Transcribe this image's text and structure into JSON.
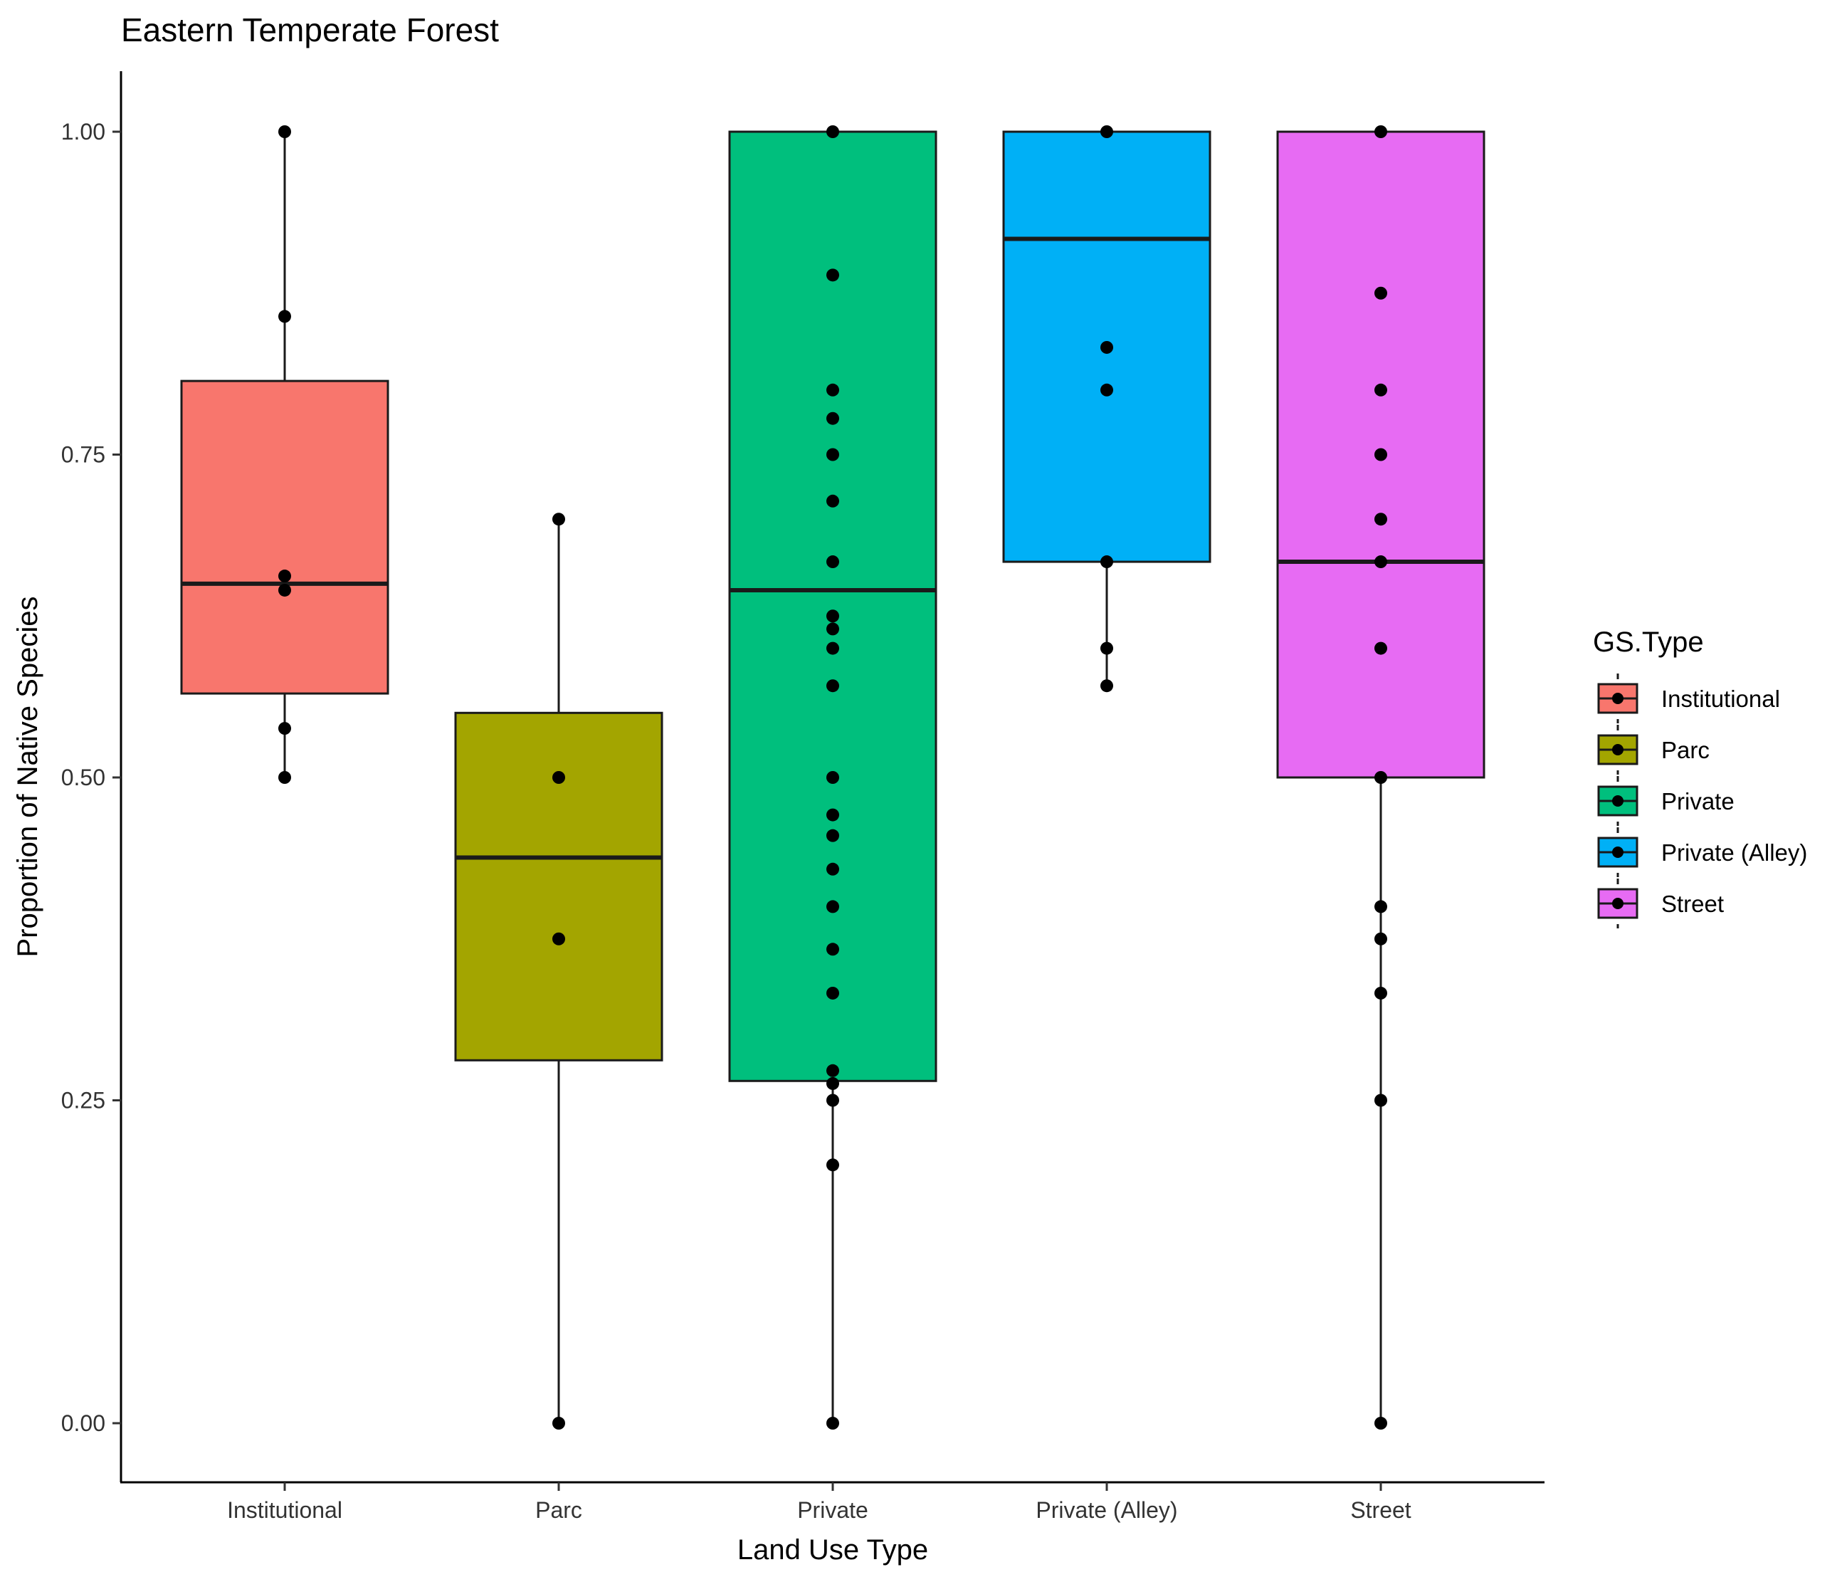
{
  "chart_data": {
    "type": "boxplot",
    "title": "Eastern Temperate Forest",
    "xlabel": "Land Use Type",
    "ylabel": "Proportion of Native Species",
    "ylim": [
      -0.047,
      1.047
    ],
    "y_ticks": [
      "0.00",
      "0.25",
      "0.50",
      "0.75",
      "1.00"
    ],
    "y_tick_values": [
      0,
      0.25,
      0.5,
      0.75,
      1.0
    ],
    "grid": false,
    "legend": {
      "title": "GS.Type",
      "placement": "right"
    },
    "categories": [
      "Institutional",
      "Parc",
      "Private",
      "Private (Alley)",
      "Street"
    ],
    "series": [
      {
        "name": "Institutional",
        "color": "#F8766D",
        "box": {
          "min": 0.5,
          "q1": 0.565,
          "median": 0.65,
          "q3": 0.807,
          "max": 1.0
        },
        "points": [
          1.0,
          0.857,
          0.656,
          0.645,
          0.538,
          0.5
        ]
      },
      {
        "name": "Parc",
        "color": "#A3A500",
        "box": {
          "min": 0.0,
          "q1": 0.281,
          "median": 0.438,
          "q3": 0.55,
          "max": 0.7
        },
        "points": [
          0.7,
          0.5,
          0.375,
          0.0
        ]
      },
      {
        "name": "Private",
        "color": "#00BF7D",
        "box": {
          "min": 0.0,
          "q1": 0.265,
          "median": 0.645,
          "q3": 1.0,
          "max": 1.0
        },
        "points": [
          1.0,
          0.889,
          0.8,
          0.778,
          0.75,
          0.714,
          0.667,
          0.625,
          0.615,
          0.6,
          0.571,
          0.5,
          0.471,
          0.455,
          0.429,
          0.4,
          0.367,
          0.333,
          0.273,
          0.263,
          0.25,
          0.2,
          0.0
        ]
      },
      {
        "name": "Private (Alley)",
        "color": "#00B0F6",
        "box": {
          "min": 0.571,
          "q1": 0.667,
          "median": 0.917,
          "q3": 1.0,
          "max": 1.0
        },
        "points": [
          1.0,
          0.833,
          0.8,
          0.667,
          0.6,
          0.571
        ]
      },
      {
        "name": "Street",
        "color": "#E76BF3",
        "box": {
          "min": 0.0,
          "q1": 0.5,
          "median": 0.667,
          "q3": 1.0,
          "max": 1.0
        },
        "points": [
          1.0,
          0.875,
          0.8,
          0.75,
          0.7,
          0.667,
          0.6,
          0.5,
          0.4,
          0.375,
          0.333,
          0.25,
          0.0
        ]
      }
    ]
  }
}
